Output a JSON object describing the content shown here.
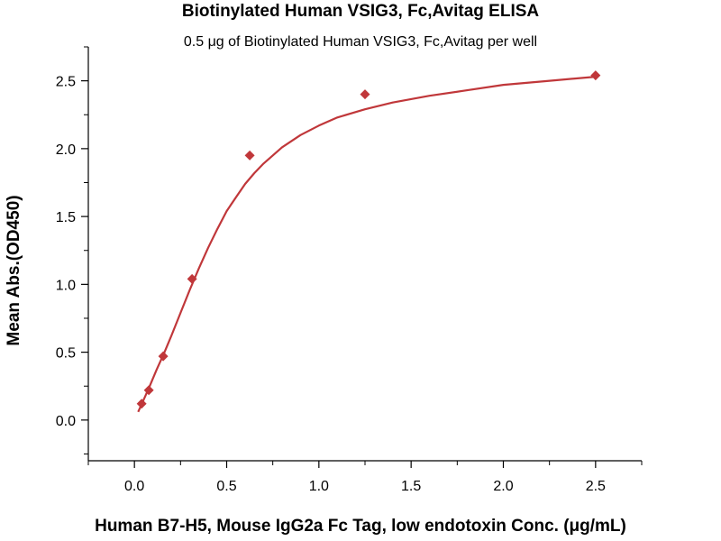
{
  "chart_data": {
    "type": "scatter",
    "title": "Biotinylated Human VSIG3, Fc,Avitag ELISA",
    "subtitle": "0.5 μg of Biotinylated Human VSIG3, Fc,Avitag per well",
    "xlabel": "Human B7-H5, Mouse IgG2a Fc Tag, low endotoxin Conc. (μg/mL)",
    "ylabel": "Mean Abs.(OD450)",
    "xlim": [
      -0.25,
      2.75
    ],
    "ylim": [
      -0.3,
      2.75
    ],
    "xticks": [
      "0.0",
      "0.5",
      "1.0",
      "1.5",
      "2.0",
      "2.5"
    ],
    "yticks": [
      "0.0",
      "0.5",
      "1.0",
      "1.5",
      "2.0",
      "2.5"
    ],
    "grid": false,
    "marker_color": "#c0373a",
    "line_color": "#c0373a",
    "points": [
      {
        "x": 0.039,
        "y": 0.12
      },
      {
        "x": 0.078,
        "y": 0.22
      },
      {
        "x": 0.156,
        "y": 0.47
      },
      {
        "x": 0.3125,
        "y": 1.04
      },
      {
        "x": 0.625,
        "y": 1.95
      },
      {
        "x": 1.25,
        "y": 2.4
      },
      {
        "x": 2.5,
        "y": 2.54
      }
    ],
    "fit_curve": [
      {
        "x": 0.02,
        "y": 0.06
      },
      {
        "x": 0.04,
        "y": 0.12
      },
      {
        "x": 0.08,
        "y": 0.24
      },
      {
        "x": 0.12,
        "y": 0.37
      },
      {
        "x": 0.16,
        "y": 0.49
      },
      {
        "x": 0.2,
        "y": 0.62
      },
      {
        "x": 0.25,
        "y": 0.79
      },
      {
        "x": 0.3,
        "y": 0.96
      },
      {
        "x": 0.35,
        "y": 1.12
      },
      {
        "x": 0.4,
        "y": 1.27
      },
      {
        "x": 0.45,
        "y": 1.41
      },
      {
        "x": 0.5,
        "y": 1.54
      },
      {
        "x": 0.55,
        "y": 1.64
      },
      {
        "x": 0.6,
        "y": 1.74
      },
      {
        "x": 0.65,
        "y": 1.82
      },
      {
        "x": 0.7,
        "y": 1.89
      },
      {
        "x": 0.8,
        "y": 2.01
      },
      {
        "x": 0.9,
        "y": 2.1
      },
      {
        "x": 1.0,
        "y": 2.17
      },
      {
        "x": 1.1,
        "y": 2.23
      },
      {
        "x": 1.25,
        "y": 2.29
      },
      {
        "x": 1.4,
        "y": 2.34
      },
      {
        "x": 1.6,
        "y": 2.39
      },
      {
        "x": 1.8,
        "y": 2.43
      },
      {
        "x": 2.0,
        "y": 2.47
      },
      {
        "x": 2.25,
        "y": 2.5
      },
      {
        "x": 2.5,
        "y": 2.53
      }
    ]
  }
}
